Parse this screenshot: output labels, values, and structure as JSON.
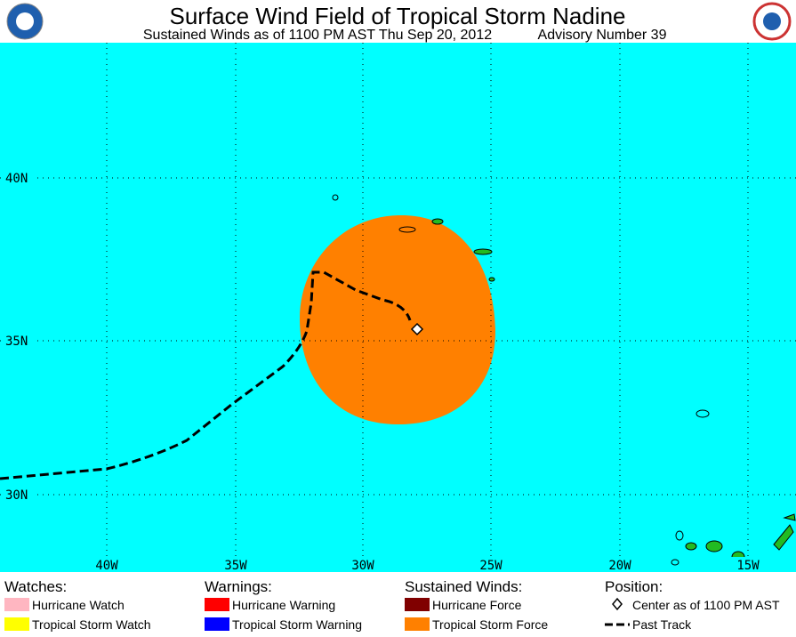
{
  "header": {
    "title": "Surface Wind Field of Tropical Storm Nadine",
    "subtitle": "Sustained Winds as of 1100 PM AST Thu Sep 20, 2012",
    "advisory": "Advisory Number 39"
  },
  "map": {
    "lat_labels": [
      "40N",
      "35N",
      "30N"
    ],
    "lon_labels": [
      "40W",
      "35W",
      "30W",
      "25W",
      "20W",
      "15W"
    ]
  },
  "legend": {
    "watches": {
      "title": "Watches:",
      "items": [
        "Hurricane Watch",
        "Tropical Storm Watch"
      ]
    },
    "warnings": {
      "title": "Warnings:",
      "items": [
        "Hurricane Warning",
        "Tropical Storm Warning"
      ]
    },
    "winds": {
      "title": "Sustained Winds:",
      "items": [
        "Hurricane Force",
        "Tropical Storm Force"
      ]
    },
    "position": {
      "title": "Position:",
      "items": [
        "Center as of 1100 PM AST",
        "Past Track"
      ]
    }
  }
}
